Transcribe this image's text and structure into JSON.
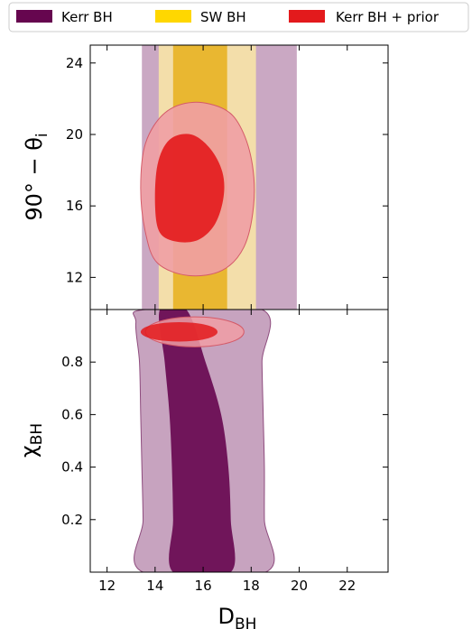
{
  "legend": {
    "placement": "top",
    "entries": [
      {
        "label": "Kerr BH",
        "color": "#66064f"
      },
      {
        "label": "SW BH",
        "color": "#ffd700"
      },
      {
        "label": "Kerr BH + prior",
        "color": "#e31a1c"
      }
    ]
  },
  "chart_data": [
    {
      "type": "area",
      "panel": "top",
      "xlabel": "D_BH",
      "ylabel": "90° − θ_i",
      "xlim": [
        11.3,
        23.7
      ],
      "ylim": [
        10.2,
        25.0
      ],
      "xticks": [
        12,
        14,
        16,
        18,
        20,
        22
      ],
      "yticks": [
        12,
        16,
        20,
        24
      ],
      "xticklabels_shown": false,
      "grid": false,
      "series": [
        {
          "name": "Kerr BH",
          "level": "outer",
          "color": "#c199b8",
          "x_range": [
            13.45,
            19.9
          ]
        },
        {
          "name": "SW BH",
          "level": "outer",
          "color": "#fae7a6",
          "x_range": [
            14.15,
            18.2
          ]
        },
        {
          "name": "SW BH",
          "level": "inner",
          "color": "#e6b01c",
          "x_range": [
            14.75,
            17.0
          ]
        },
        {
          "name": "Kerr BH + prior",
          "level": "outer",
          "color": "#f09ea4",
          "contour": [
            [
              13.4,
              17.0
            ],
            [
              13.6,
              19.5
            ],
            [
              14.4,
              21.2
            ],
            [
              15.6,
              21.8
            ],
            [
              16.9,
              21.4
            ],
            [
              17.6,
              20.3
            ],
            [
              18.05,
              18.3
            ],
            [
              18.1,
              16.0
            ],
            [
              17.7,
              13.7
            ],
            [
              16.8,
              12.4
            ],
            [
              15.4,
              12.1
            ],
            [
              14.1,
              12.8
            ],
            [
              13.6,
              14.5
            ]
          ]
        },
        {
          "name": "Kerr BH + prior",
          "level": "inner",
          "color": "#e31a1c",
          "contour": [
            [
              14.0,
              16.0
            ],
            [
              14.1,
              18.3
            ],
            [
              14.6,
              19.7
            ],
            [
              15.5,
              20.0
            ],
            [
              16.3,
              19.2
            ],
            [
              16.8,
              17.9
            ],
            [
              16.85,
              16.5
            ],
            [
              16.5,
              15.0
            ],
            [
              15.8,
              14.1
            ],
            [
              14.9,
              14.0
            ],
            [
              14.2,
              14.5
            ]
          ]
        }
      ]
    },
    {
      "type": "area",
      "panel": "bottom",
      "xlabel": "D_BH",
      "ylabel": "χ_BH",
      "xlim": [
        11.3,
        23.7
      ],
      "ylim": [
        0.0,
        1.0
      ],
      "xticks": [
        12,
        14,
        16,
        18,
        20,
        22
      ],
      "yticks": [
        0.2,
        0.4,
        0.6,
        0.8
      ],
      "grid": false,
      "series": [
        {
          "name": "Kerr BH",
          "level": "outer",
          "color": "#c199b8",
          "contour": [
            [
              13.6,
              1.0
            ],
            [
              18.45,
              1.0
            ],
            [
              18.45,
              0.8
            ],
            [
              18.5,
              0.6
            ],
            [
              18.55,
              0.4
            ],
            [
              18.55,
              0.2
            ],
            [
              18.6,
              0.0
            ],
            [
              13.5,
              0.0
            ],
            [
              13.5,
              0.2
            ],
            [
              13.45,
              0.4
            ],
            [
              13.4,
              0.6
            ],
            [
              13.35,
              0.8
            ],
            [
              13.2,
              0.95
            ]
          ]
        },
        {
          "name": "Kerr BH",
          "level": "inner",
          "color": "#66064f",
          "contour": [
            [
              14.2,
              1.0
            ],
            [
              15.3,
              1.0
            ],
            [
              16.1,
              0.8
            ],
            [
              16.75,
              0.6
            ],
            [
              17.05,
              0.4
            ],
            [
              17.15,
              0.2
            ],
            [
              17.15,
              0.0
            ],
            [
              14.75,
              0.0
            ],
            [
              14.75,
              0.2
            ],
            [
              14.7,
              0.4
            ],
            [
              14.6,
              0.6
            ],
            [
              14.4,
              0.8
            ]
          ]
        },
        {
          "name": "Kerr BH + prior",
          "level": "outer",
          "color": "#f09ea4",
          "ellipse": {
            "cx": 15.65,
            "cy": 0.915,
            "rx": 2.05,
            "ry": 0.057
          }
        },
        {
          "name": "Kerr BH + prior",
          "level": "inner",
          "color": "#e31a1c",
          "ellipse": {
            "cx": 15.0,
            "cy": 0.915,
            "rx": 1.6,
            "ry": 0.037
          }
        }
      ]
    }
  ]
}
